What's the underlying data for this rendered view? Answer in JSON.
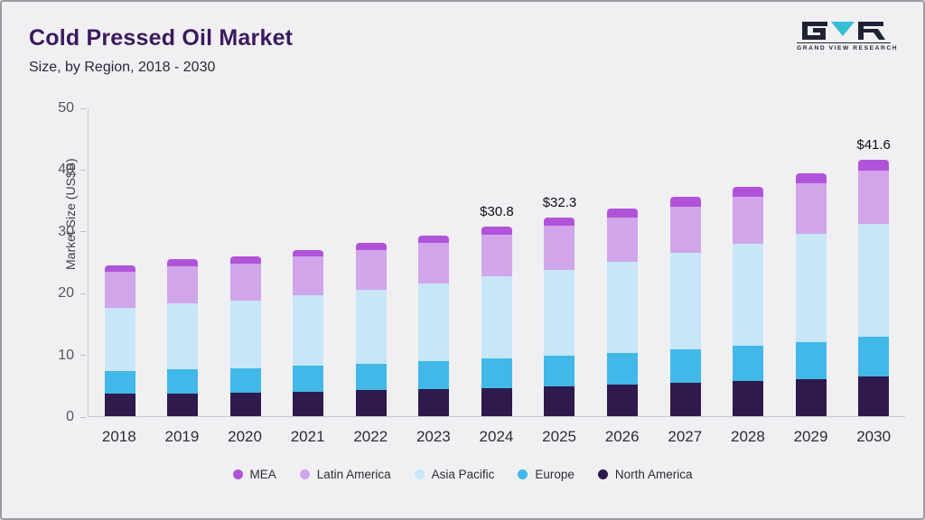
{
  "header": {
    "title": "Cold Pressed Oil Market",
    "subtitle": "Size, by Region, 2018 - 2030"
  },
  "logo": {
    "text": "GRAND VIEW RESEARCH"
  },
  "chart_data": {
    "type": "bar",
    "stacked": true,
    "title": "Cold Pressed Oil Market Size, by Region, 2018 - 2030",
    "ylabel": "Market Size (US$B)",
    "ylim": [
      0,
      50
    ],
    "yticks": [
      0,
      10,
      20,
      30,
      40,
      50
    ],
    "grid": false,
    "legend_position": "bottom",
    "categories": [
      "2018",
      "2019",
      "2020",
      "2021",
      "2022",
      "2023",
      "2024",
      "2025",
      "2026",
      "2027",
      "2028",
      "2029",
      "2030"
    ],
    "series": [
      {
        "name": "North America",
        "color": "#2e1a4d",
        "values": [
          3.6,
          3.7,
          3.8,
          4.0,
          4.2,
          4.4,
          4.6,
          4.9,
          5.1,
          5.4,
          5.7,
          6.0,
          6.4
        ]
      },
      {
        "name": "Europe",
        "color": "#41b8e8",
        "values": [
          3.8,
          3.9,
          4.0,
          4.2,
          4.3,
          4.5,
          4.8,
          4.9,
          5.2,
          5.5,
          5.8,
          6.1,
          6.5
        ]
      },
      {
        "name": "Asia Pacific",
        "color": "#c7e7f8",
        "values": [
          10.2,
          10.8,
          11.0,
          11.5,
          12.0,
          12.7,
          13.3,
          14.0,
          14.8,
          15.6,
          16.5,
          17.5,
          18.4
        ]
      },
      {
        "name": "Latin America",
        "color": "#d0a5e9",
        "values": [
          5.9,
          6.0,
          6.0,
          6.2,
          6.5,
          6.5,
          6.8,
          7.1,
          7.2,
          7.5,
          7.7,
          8.2,
          8.6
        ]
      },
      {
        "name": "MEA",
        "color": "#b153d9",
        "values": [
          1.0,
          1.1,
          1.1,
          1.1,
          1.2,
          1.3,
          1.3,
          1.4,
          1.5,
          1.6,
          1.5,
          1.6,
          1.7
        ]
      }
    ],
    "totals": [
      24.5,
      25.5,
      25.9,
      27.0,
      28.2,
      29.4,
      30.8,
      32.3,
      33.8,
      35.6,
      37.2,
      39.4,
      41.6
    ],
    "annotations": {
      "2024": "$30.8",
      "2025": "$32.3",
      "2030": "$41.6"
    },
    "legend_order": [
      "MEA",
      "Latin America",
      "Asia Pacific",
      "Europe",
      "North America"
    ]
  }
}
